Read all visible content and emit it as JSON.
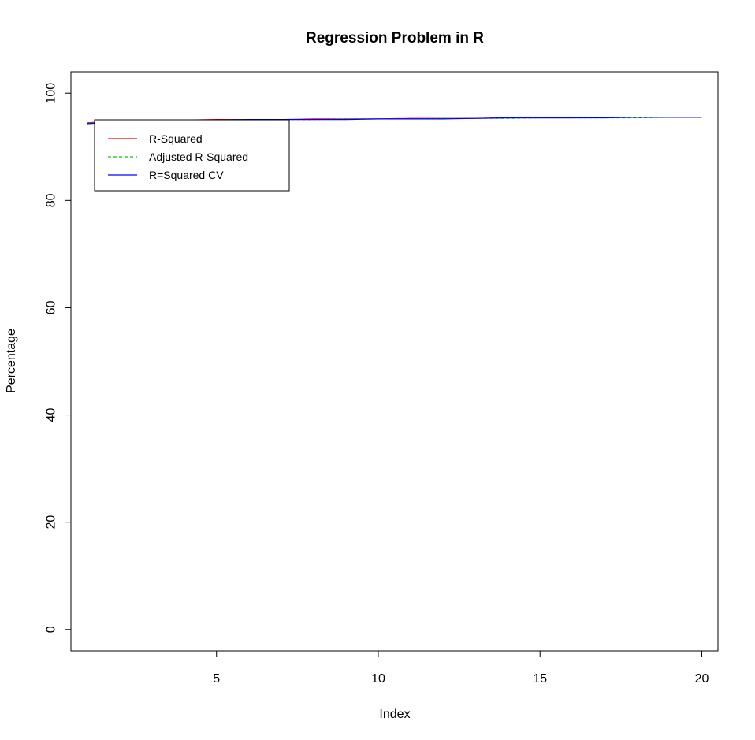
{
  "chart_data": {
    "type": "line",
    "title": "Regression Problem in R",
    "xlabel": "Index",
    "ylabel": "Percentage",
    "xlim": [
      0.5,
      20.5
    ],
    "ylim": [
      -4,
      104
    ],
    "x_ticks": [
      5,
      10,
      15,
      20
    ],
    "y_ticks": [
      0,
      20,
      40,
      60,
      80,
      100
    ],
    "x": [
      1,
      2,
      3,
      4,
      5,
      6,
      7,
      8,
      9,
      10,
      11,
      12,
      13,
      14,
      15,
      16,
      17,
      18,
      19,
      20
    ],
    "series": [
      {
        "name": "R-Squared",
        "color": "#ff0000",
        "dash": "solid",
        "values": [
          94.5,
          94.8,
          95.0,
          95.0,
          95.1,
          95.1,
          95.1,
          95.2,
          95.2,
          95.2,
          95.3,
          95.3,
          95.3,
          95.4,
          95.4,
          95.4,
          95.5,
          95.5,
          95.5,
          95.5
        ]
      },
      {
        "name": "Adjusted R-Squared",
        "color": "#00cc00",
        "dash": "dashed",
        "values": [
          94.4,
          94.7,
          94.9,
          95.0,
          95.0,
          95.1,
          95.1,
          95.1,
          95.2,
          95.2,
          95.2,
          95.3,
          95.3,
          95.3,
          95.4,
          95.4,
          95.4,
          95.4,
          95.5,
          95.5
        ]
      },
      {
        "name": "R=Squared CV",
        "color": "#0000ff",
        "dash": "solid",
        "values": [
          94.3,
          94.7,
          94.9,
          95.0,
          95.0,
          95.1,
          95.1,
          95.1,
          95.1,
          95.2,
          95.2,
          95.2,
          95.3,
          95.4,
          95.4,
          95.4,
          95.4,
          95.5,
          95.5,
          95.5
        ]
      }
    ],
    "legend_position": "top-left",
    "grid": false
  }
}
